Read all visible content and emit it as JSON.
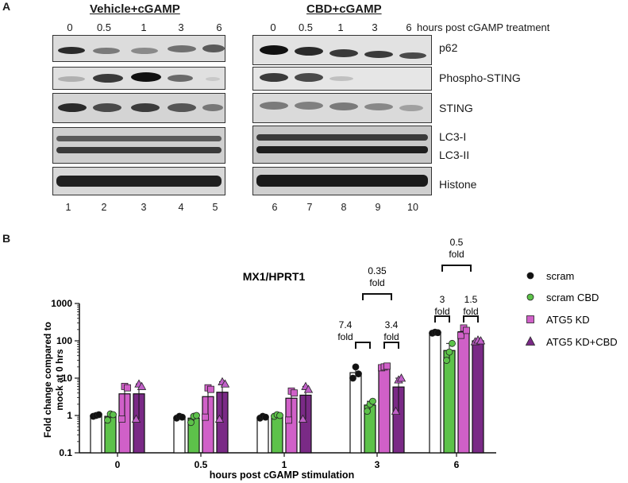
{
  "panel_a": {
    "letter": "A",
    "vehicle_title": "Vehicle+cGAMP",
    "cbd_title": "CBD+cGAMP",
    "vehicle_timepoints": [
      "0",
      "0.5",
      "1",
      "3",
      "6"
    ],
    "cbd_timepoints": [
      "0",
      "0.5",
      "1",
      "3",
      "6"
    ],
    "timepoint_suffix": "hours post cGAMP treatment",
    "band_labels": {
      "p62": "p62",
      "phospho_sting": "Phospho-STING",
      "sting": "STING",
      "lc3_i": "LC3-I",
      "lc3_ii": "LC3-II",
      "histone": "Histone"
    },
    "vehicle_lanes": [
      "1",
      "2",
      "3",
      "4",
      "5"
    ],
    "cbd_lanes": [
      "6",
      "7",
      "8",
      "9",
      "10"
    ]
  },
  "panel_b": {
    "letter": "B",
    "chart_data": {
      "type": "bar",
      "title": "MX1/HPRT1",
      "xlabel": "hours post cGAMP stimulation",
      "ylabel_line1": "Fold change compared to",
      "ylabel_line2": "mock at 0 hrs",
      "yscale": "log",
      "ylim": [
        0.1,
        1000
      ],
      "yticks": [
        "0.1",
        "1",
        "10",
        "100",
        "1000"
      ],
      "categories": [
        "0",
        "0.5",
        "1",
        "3",
        "6"
      ],
      "series": [
        {
          "name": "scram",
          "color": "#ffffff",
          "marker": "circle",
          "marker_color": "#111111",
          "values": [
            1.0,
            0.9,
            0.9,
            14,
            165
          ],
          "points": [
            [
              0.95,
              1.0,
              1.05
            ],
            [
              0.85,
              0.95,
              0.9
            ],
            [
              0.85,
              0.95,
              0.9
            ],
            [
              10,
              20,
              13
            ],
            [
              160,
              170,
              165
            ]
          ]
        },
        {
          "name": "scram CBD",
          "color": "#5dc24a",
          "marker": "circle",
          "marker_color": "#5dc24a",
          "values": [
            0.95,
            0.85,
            1.0,
            1.9,
            55
          ],
          "points": [
            [
              0.75,
              1.1,
              1.05
            ],
            [
              0.65,
              0.95,
              1.0
            ],
            [
              0.95,
              1.05,
              1.0
            ],
            [
              1.3,
              2.0,
              2.4
            ],
            [
              30,
              50,
              85
            ]
          ]
        },
        {
          "name": "ATG5 KD",
          "color": "#d060c8",
          "marker": "square",
          "marker_color": "#d060c8",
          "values": [
            3.8,
            3.2,
            2.9,
            20,
            175
          ],
          "points": [
            [
              0.8,
              6.0,
              5.5
            ],
            [
              0.9,
              5.5,
              5.0
            ],
            [
              0.75,
              4.5,
              4.0
            ],
            [
              19,
              20,
              21
            ],
            [
              140,
              220,
              190
            ]
          ]
        },
        {
          "name": "ATG5 KD+CBD",
          "color": "#7a2a86",
          "marker": "triangle",
          "marker_color": "#c060c8",
          "values": [
            3.8,
            4.2,
            3.5,
            5.8,
            100
          ],
          "points": [
            [
              0.8,
              7.0,
              6.0
            ],
            [
              0.8,
              8.0,
              7.0
            ],
            [
              0.8,
              6.0,
              5.0
            ],
            [
              1.3,
              9.0,
              10
            ],
            [
              95,
              105,
              100
            ]
          ]
        }
      ],
      "annotations": [
        {
          "text": "7.4 fold",
          "line1": "7.4",
          "line2": "fold"
        },
        {
          "text": "3.4 fold",
          "line1": "3.4",
          "line2": "fold"
        },
        {
          "text": "0.35 fold",
          "line1": "0.35",
          "line2": "fold"
        },
        {
          "text": "3 fold",
          "line1": "3",
          "line2": "fold"
        },
        {
          "text": "1.5 fold",
          "line1": "1.5",
          "line2": "fold"
        },
        {
          "text": "0.5 fold",
          "line1": "0.5",
          "line2": "fold"
        }
      ]
    }
  }
}
